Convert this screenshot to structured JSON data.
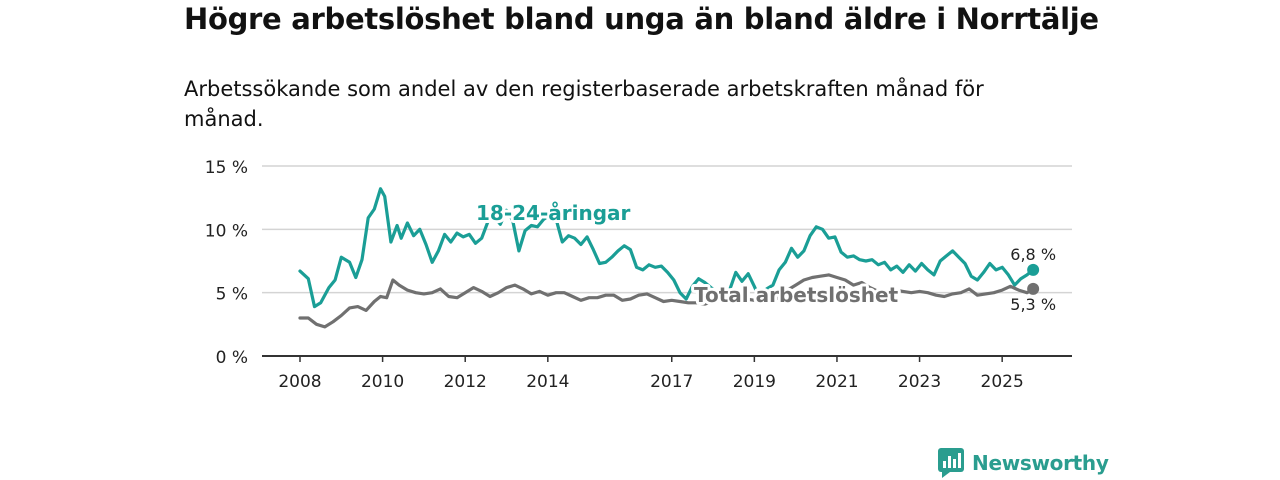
{
  "title": "Högre arbetslöshet bland unga än bland äldre i Norrtälje",
  "subtitle": "Arbetssökande som andel av den registerbaserade arbetskraften månad för månad.",
  "brand": {
    "name": "Newsworthy"
  },
  "colors": {
    "youth": "#1a9e96",
    "total": "#707070",
    "grid": "#d4d4d4",
    "axis": "#333333"
  },
  "chart_data": {
    "type": "line",
    "title": "Högre arbetslöshet bland unga än bland äldre i Norrtälje",
    "ylabel": "",
    "xlabel": "",
    "ylim": [
      0,
      15
    ],
    "xlim": [
      2008.0,
      2026.4
    ],
    "y_ticks": [
      {
        "value": 0,
        "label": "0 %"
      },
      {
        "value": 5,
        "label": "5 %"
      },
      {
        "value": 10,
        "label": "10 %"
      },
      {
        "value": 15,
        "label": "15 %"
      }
    ],
    "x_ticks": [
      {
        "value": 2008,
        "label": "2008"
      },
      {
        "value": 2010,
        "label": "2010"
      },
      {
        "value": 2012,
        "label": "2012"
      },
      {
        "value": 2014,
        "label": "2014"
      },
      {
        "value": 2017,
        "label": "2017"
      },
      {
        "value": 2019,
        "label": "2019"
      },
      {
        "value": 2021,
        "label": "2021"
      },
      {
        "value": 2023,
        "label": "2023"
      },
      {
        "value": 2025,
        "label": "2025"
      }
    ],
    "series": [
      {
        "name": "18-24-åringar",
        "label": "18-24-åringar",
        "color": "#1a9e96",
        "end_label": "6,8 %",
        "x": [
          2008.0,
          2008.2,
          2008.35,
          2008.5,
          2008.7,
          2008.85,
          2009.0,
          2009.2,
          2009.35,
          2009.5,
          2009.65,
          2009.8,
          2009.95,
          2010.05,
          2010.2,
          2010.35,
          2010.45,
          2010.6,
          2010.75,
          2010.9,
          2011.05,
          2011.2,
          2011.35,
          2011.5,
          2011.65,
          2011.8,
          2011.95,
          2012.1,
          2012.25,
          2012.4,
          2012.55,
          2012.7,
          2012.85,
          2013.0,
          2013.15,
          2013.3,
          2013.45,
          2013.6,
          2013.75,
          2013.9,
          2014.05,
          2014.2,
          2014.35,
          2014.5,
          2014.65,
          2014.8,
          2014.95,
          2015.1,
          2015.25,
          2015.4,
          2015.55,
          2015.7,
          2015.85,
          2016.0,
          2016.15,
          2016.3,
          2016.45,
          2016.6,
          2016.75,
          2016.9,
          2017.05,
          2017.2,
          2017.35,
          2017.5,
          2017.65,
          2017.8,
          2017.95,
          2018.1,
          2018.25,
          2018.4,
          2018.55,
          2018.7,
          2018.85,
          2019.0,
          2019.15,
          2019.3,
          2019.45,
          2019.6,
          2019.75,
          2019.9,
          2020.05,
          2020.2,
          2020.35,
          2020.5,
          2020.65,
          2020.8,
          2020.95,
          2021.1,
          2021.25,
          2021.4,
          2021.55,
          2021.7,
          2021.85,
          2022.0,
          2022.15,
          2022.3,
          2022.45,
          2022.6,
          2022.75,
          2022.9,
          2023.05,
          2023.2,
          2023.35,
          2023.5,
          2023.65,
          2023.8,
          2023.95,
          2024.1,
          2024.25,
          2024.4,
          2024.55,
          2024.7,
          2024.85,
          2025.0,
          2025.15,
          2025.3,
          2025.45,
          2025.6,
          2025.75
        ],
        "values": [
          6.7,
          6.1,
          3.9,
          4.2,
          5.4,
          6.0,
          7.8,
          7.4,
          6.2,
          7.6,
          10.9,
          11.6,
          13.2,
          12.6,
          9.0,
          10.3,
          9.3,
          10.5,
          9.5,
          10.0,
          8.8,
          7.4,
          8.3,
          9.6,
          9.0,
          9.7,
          9.4,
          9.6,
          8.9,
          9.3,
          10.6,
          11.0,
          10.4,
          11.5,
          10.7,
          8.3,
          9.9,
          10.3,
          10.2,
          10.8,
          11.1,
          10.8,
          9.0,
          9.5,
          9.3,
          8.8,
          9.4,
          8.4,
          7.3,
          7.4,
          7.8,
          8.3,
          8.7,
          8.4,
          7.0,
          6.8,
          7.2,
          7.0,
          7.1,
          6.6,
          6.0,
          5.0,
          4.5,
          5.5,
          6.1,
          5.8,
          5.4,
          5.0,
          5.1,
          5.2,
          6.6,
          5.9,
          6.5,
          5.5,
          4.4,
          5.3,
          5.6,
          6.8,
          7.4,
          8.5,
          7.8,
          8.3,
          9.5,
          10.2,
          10.0,
          9.3,
          9.4,
          8.2,
          7.8,
          7.9,
          7.6,
          7.5,
          7.6,
          7.2,
          7.4,
          6.8,
          7.1,
          6.6,
          7.2,
          6.7,
          7.3,
          6.8,
          6.4,
          7.5,
          7.9,
          8.3,
          7.8,
          7.3,
          6.3,
          6.0,
          6.6,
          7.3,
          6.8,
          7.0,
          6.4,
          5.6,
          6.1,
          6.4,
          6.8
        ]
      },
      {
        "name": "Total arbetslöshet",
        "label": "Total arbetslöshet",
        "color": "#707070",
        "end_label": "5,3 %",
        "x": [
          2008.0,
          2008.2,
          2008.4,
          2008.6,
          2008.8,
          2009.0,
          2009.2,
          2009.4,
          2009.6,
          2009.8,
          2009.95,
          2010.1,
          2010.25,
          2010.4,
          2010.6,
          2010.8,
          2011.0,
          2011.2,
          2011.4,
          2011.6,
          2011.8,
          2012.0,
          2012.2,
          2012.4,
          2012.6,
          2012.8,
          2013.0,
          2013.2,
          2013.4,
          2013.6,
          2013.8,
          2014.0,
          2014.2,
          2014.4,
          2014.6,
          2014.8,
          2015.0,
          2015.2,
          2015.4,
          2015.6,
          2015.8,
          2016.0,
          2016.2,
          2016.4,
          2016.6,
          2016.8,
          2017.0,
          2017.2,
          2017.4,
          2017.6,
          2017.8,
          2018.0,
          2018.2,
          2018.4,
          2018.6,
          2018.8,
          2019.0,
          2019.2,
          2019.4,
          2019.6,
          2019.8,
          2020.0,
          2020.2,
          2020.4,
          2020.6,
          2020.8,
          2021.0,
          2021.2,
          2021.4,
          2021.6,
          2021.8,
          2022.0,
          2022.2,
          2022.4,
          2022.6,
          2022.8,
          2023.0,
          2023.2,
          2023.4,
          2023.6,
          2023.8,
          2024.0,
          2024.2,
          2024.4,
          2024.6,
          2024.8,
          2025.0,
          2025.2,
          2025.4,
          2025.6,
          2025.75
        ],
        "values": [
          3.0,
          3.0,
          2.5,
          2.3,
          2.7,
          3.2,
          3.8,
          3.9,
          3.6,
          4.3,
          4.7,
          4.6,
          6.0,
          5.6,
          5.2,
          5.0,
          4.9,
          5.0,
          5.3,
          4.7,
          4.6,
          5.0,
          5.4,
          5.1,
          4.7,
          5.0,
          5.4,
          5.6,
          5.3,
          4.9,
          5.1,
          4.8,
          5.0,
          5.0,
          4.7,
          4.4,
          4.6,
          4.6,
          4.8,
          4.8,
          4.4,
          4.5,
          4.8,
          4.9,
          4.6,
          4.3,
          4.4,
          4.3,
          4.2,
          4.2,
          4.1,
          4.3,
          4.4,
          4.4,
          4.8,
          4.5,
          4.4,
          4.4,
          4.4,
          4.6,
          5.2,
          5.6,
          6.0,
          6.2,
          6.3,
          6.4,
          6.2,
          6.0,
          5.6,
          5.8,
          5.4,
          5.1,
          5.0,
          5.2,
          5.1,
          5.0,
          5.1,
          5.0,
          4.8,
          4.7,
          4.9,
          5.0,
          5.3,
          4.8,
          4.9,
          5.0,
          5.2,
          5.5,
          5.2,
          5.0,
          5.3
        ]
      }
    ]
  }
}
